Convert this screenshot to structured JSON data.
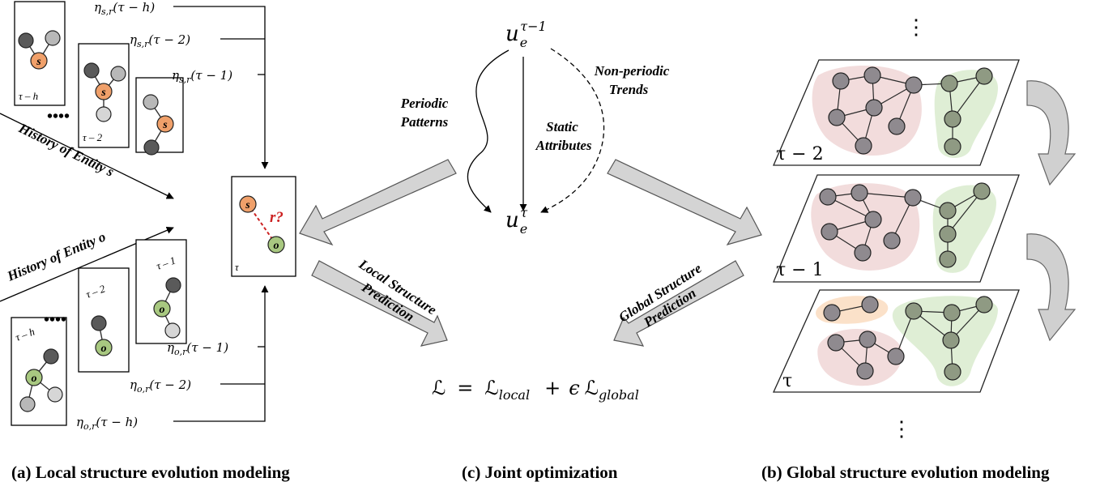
{
  "captions": {
    "local": "(a) Local structure evolution modeling",
    "joint": "(c)  Joint  optimization",
    "global": "(b) Global structure evolution modeling"
  },
  "local": {
    "history_s": "History of Entity s",
    "history_o": "History of Entity o",
    "frames_s": [
      "τ – h",
      "τ – 2",
      "τ – 1"
    ],
    "frames_o": [
      "τ – 1",
      "τ – 2",
      "τ – h"
    ],
    "target_frame": "τ",
    "node_s": "s",
    "node_o": "o",
    "relation_query": "r?",
    "eta_s": [
      "η_{s,r}(τ − h)",
      "η_{s,r}(τ − 2)",
      "η_{s,r}(τ − 1)"
    ],
    "eta_o": [
      "η_{o,r}(τ − 1)",
      "η_{o,r}(τ − 2)",
      "η_{o,r}(τ − h)"
    ],
    "ellipsis": "••••"
  },
  "joint": {
    "u_top_base": "u",
    "u_top_sub": "e",
    "u_top_sup": "τ−1",
    "u_bottom_base": "u",
    "u_bottom_sub": "e",
    "u_bottom_sup": "τ",
    "periodic": [
      "Periodic",
      "Patterns"
    ],
    "static": [
      "Static",
      "Attributes"
    ],
    "nonperiodic": [
      "Non-periodic",
      "Trends"
    ],
    "local_pred": [
      "Local Structure",
      "Prediction"
    ],
    "global_pred": [
      "Global Structure",
      "Prediction"
    ],
    "loss": {
      "L": "ℒ",
      "eq": "=",
      "local_sub": "local",
      "plus": "+",
      "eps": "ϵ",
      "global_sub": "global"
    }
  },
  "global": {
    "layers": [
      "τ − 2",
      "τ − 1",
      "τ"
    ],
    "vdots": "⋮"
  },
  "colors": {
    "node_s": "#f0a06a",
    "node_o": "#a8c880",
    "node_gray": "#b8b8b8",
    "node_dark": "#5a5a5a",
    "region_red": "#f2dcdc",
    "region_green": "#dfeed5",
    "region_orange": "#fbe1c9",
    "query_red": "#cc2222"
  }
}
